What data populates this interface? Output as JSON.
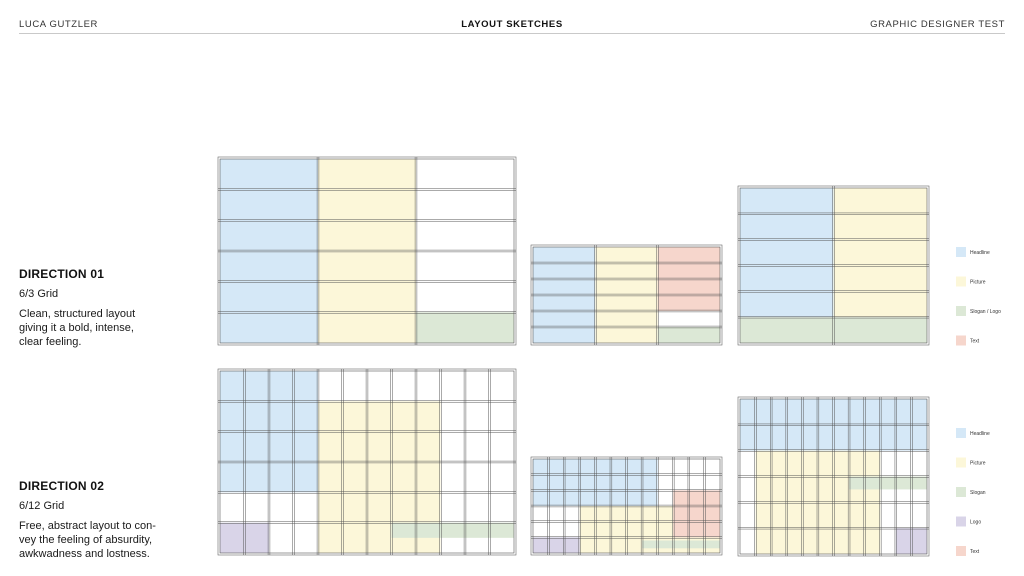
{
  "header": {
    "left": "LUCA GUTZLER",
    "center": "LAYOUT SKETCHES",
    "right": "GRAPHIC DESIGNER TEST"
  },
  "directions": [
    {
      "title": "DIRECTION 01",
      "grid": "6/3 Grid",
      "description_lines": [
        "Clean, structured layout",
        "giving it a bold, intense,",
        "clear feeling."
      ]
    },
    {
      "title": "DIRECTION 02",
      "grid": "6/12 Grid",
      "description_lines": [
        "Free, abstract layout to con-",
        "vey the feeling of absurdity,",
        "awkwadness and lostness."
      ]
    }
  ],
  "colors": {
    "headline": "#d5e8f7",
    "picture": "#fcf7d9",
    "slogan": "#dce8d6",
    "logo": "#d9d4e8",
    "text": "#f6d6cc",
    "grid_line": "#555555"
  },
  "legends": [
    {
      "items": [
        {
          "label": "Headline",
          "color_key": "headline"
        },
        {
          "label": "Picture",
          "color_key": "picture"
        },
        {
          "label": "Slogan / Logo",
          "color_key": "slogan"
        },
        {
          "label": "Text",
          "color_key": "text"
        }
      ]
    },
    {
      "items": [
        {
          "label": "Headline",
          "color_key": "headline"
        },
        {
          "label": "Picture",
          "color_key": "picture"
        },
        {
          "label": "Slogan",
          "color_key": "slogan"
        },
        {
          "label": "Logo",
          "color_key": "logo"
        },
        {
          "label": "Text",
          "color_key": "text"
        }
      ]
    }
  ]
}
